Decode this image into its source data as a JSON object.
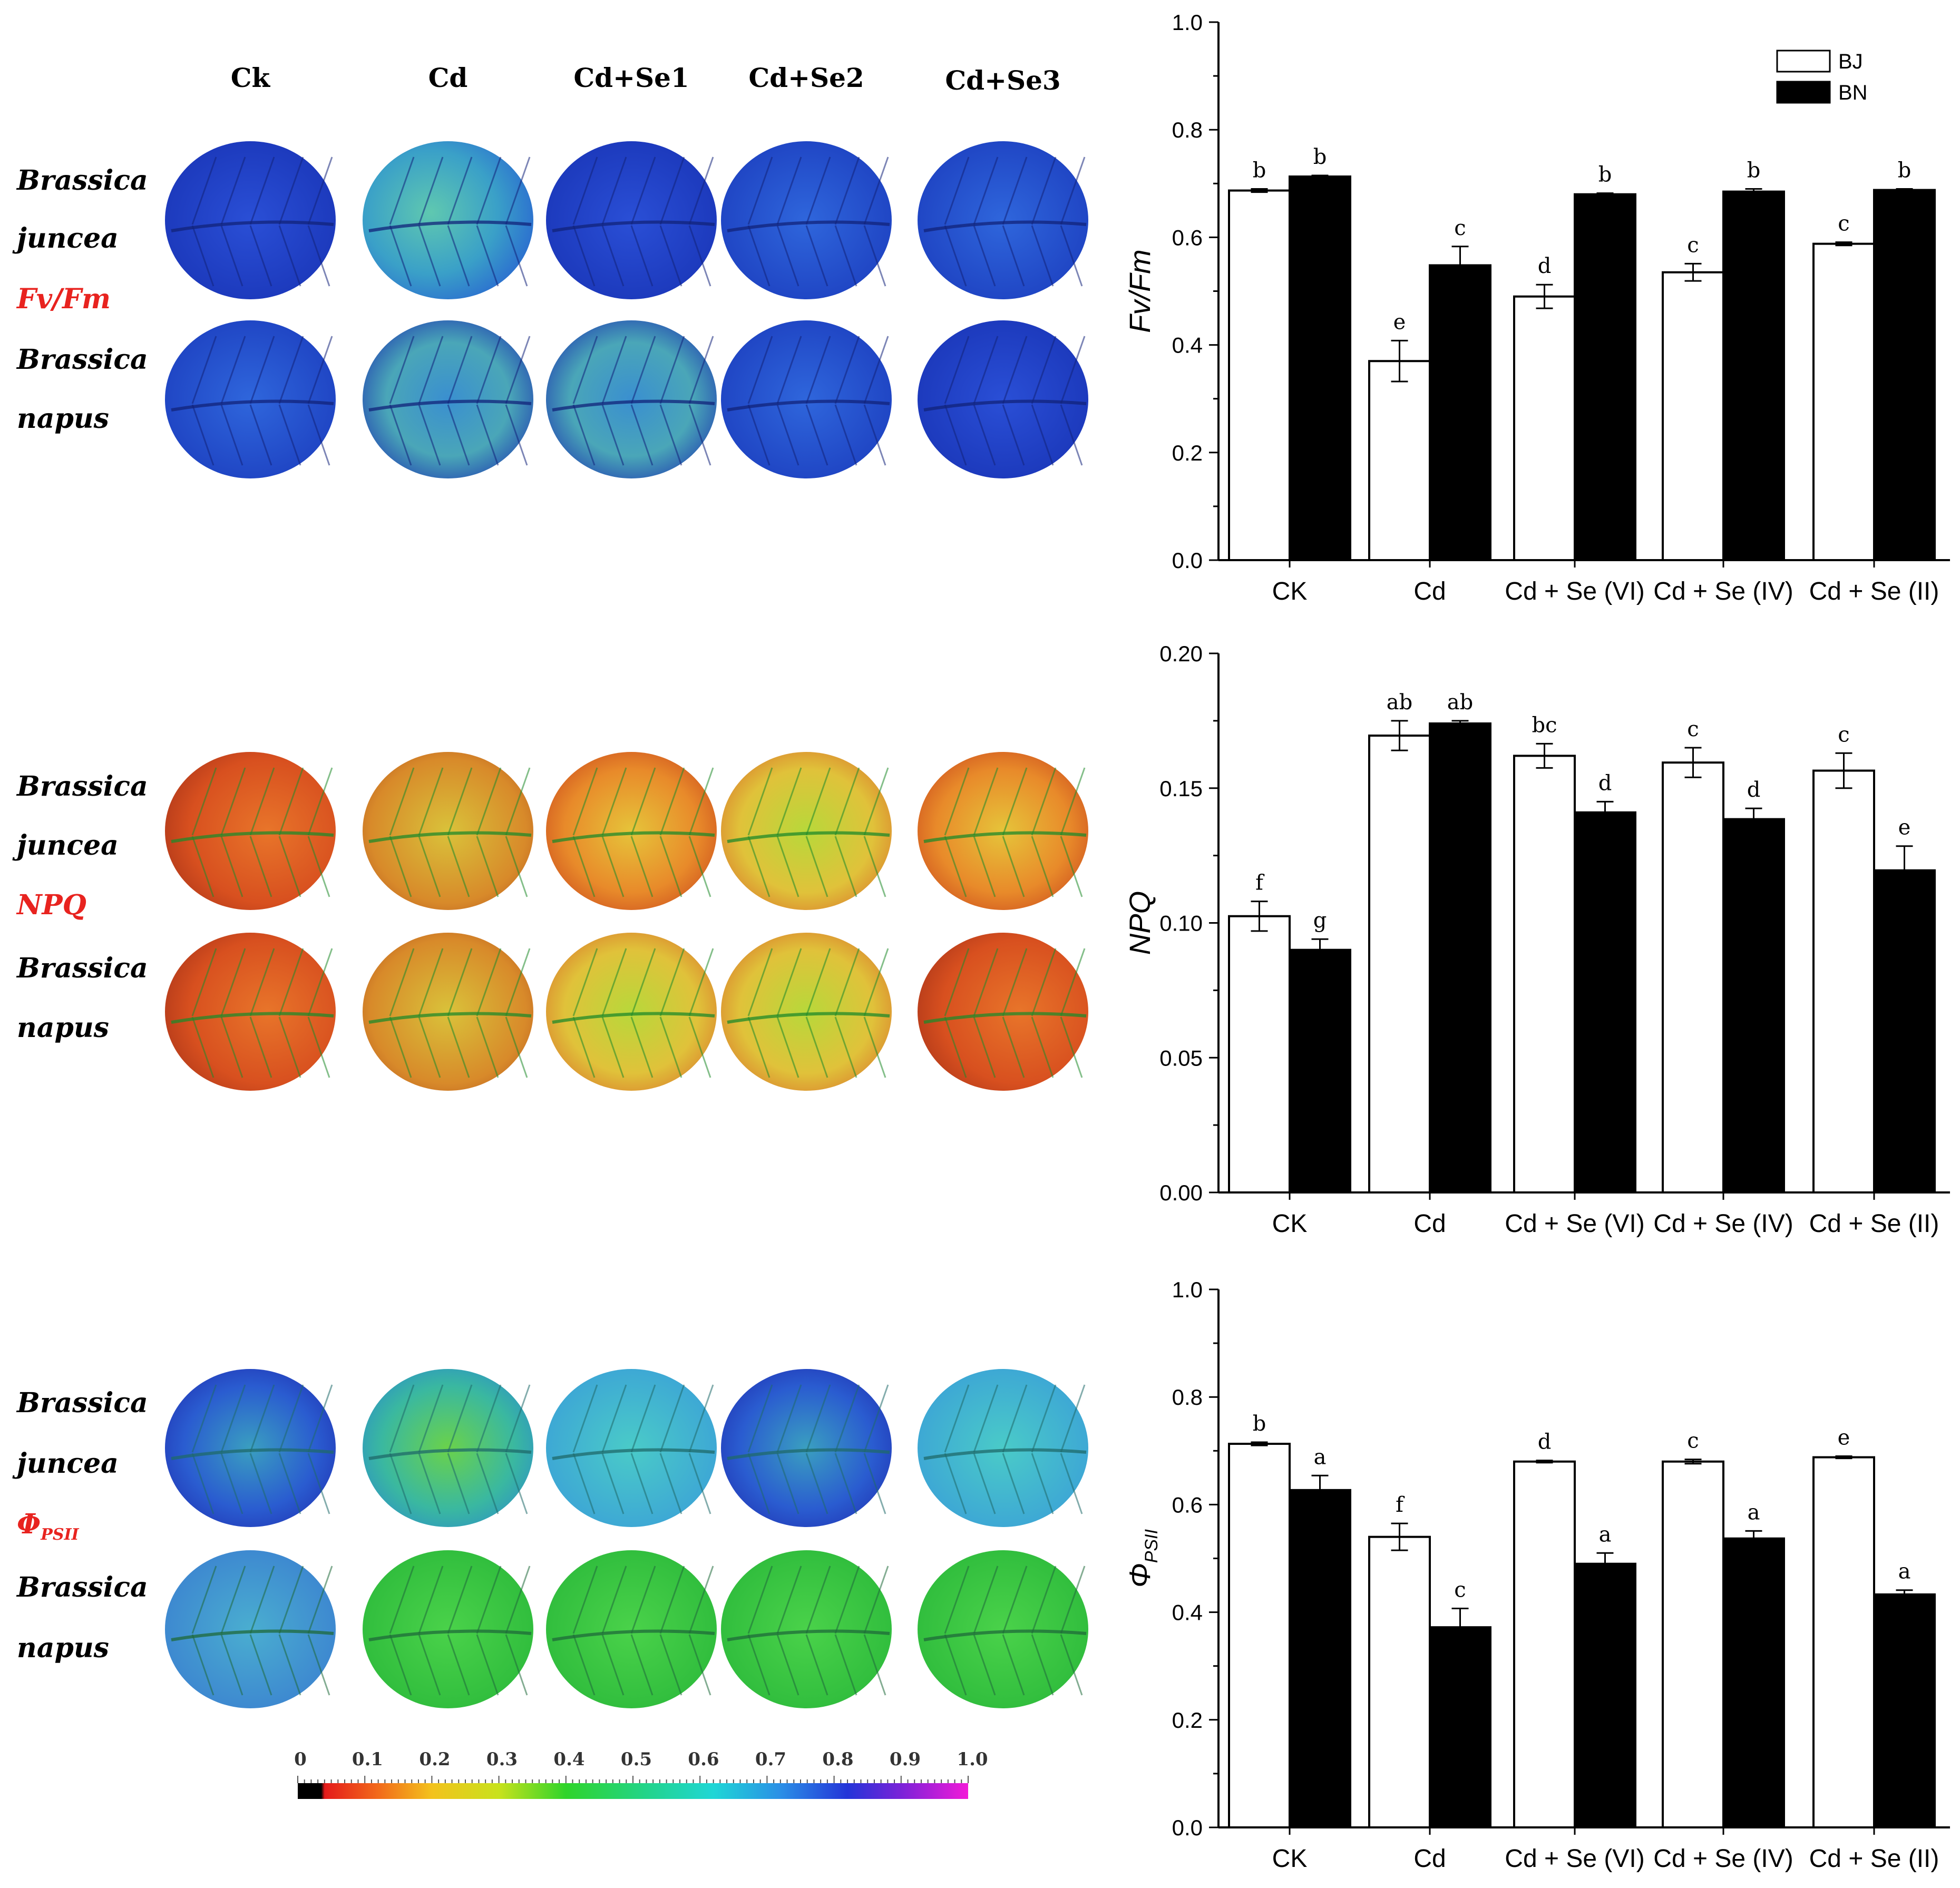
{
  "colors": {
    "accent_label": "#e8231f",
    "bar_bj": "#ffffff",
    "bar_bn": "#000000"
  },
  "leaf_panel": {
    "column_headers": [
      "Ck",
      "Cd",
      "Cd+Se1",
      "Cd+Se2",
      "Cd+Se3"
    ],
    "groups": [
      {
        "species1": [
          "Brassica",
          "juncea"
        ],
        "param": "Fv/Fm",
        "species2": [
          "Brassica",
          "napus"
        ]
      },
      {
        "species1": [
          "Brassica",
          "juncea"
        ],
        "param": "NPQ",
        "species2": [
          "Brassica",
          "napus"
        ]
      },
      {
        "species1": [
          "Brassica",
          "juncea"
        ],
        "param": "Φ",
        "param_sub": "PSII",
        "species2": [
          "Brassica",
          "napus"
        ]
      }
    ],
    "color_scale_labels": [
      "0",
      "0.1",
      "0.2",
      "0.3",
      "0.4",
      "0.5",
      "0.6",
      "0.7",
      "0.8",
      "0.9",
      "1.0"
    ]
  },
  "chart_data": [
    {
      "type": "bar",
      "ylabel": "Fv/Fm",
      "categories": [
        "CK",
        "Cd",
        "Cd + Se (VI)",
        "Cd + Se (IV)",
        "Cd + Se (II)"
      ],
      "ylim": [
        0,
        1.0
      ],
      "yticks": [
        "0.0",
        "0.2",
        "0.4",
        "0.6",
        "0.8",
        "1.0"
      ],
      "legend": [
        "BJ",
        "BN"
      ],
      "series": [
        {
          "name": "BJ",
          "values": [
            0.687,
            0.37,
            0.49,
            0.535,
            0.588
          ],
          "errors": [
            0.003,
            0.038,
            0.022,
            0.016,
            0.003
          ],
          "letters": [
            "b",
            "e",
            "d",
            "c",
            "c"
          ]
        },
        {
          "name": "BN",
          "values": [
            0.713,
            0.548,
            0.68,
            0.685,
            0.688
          ],
          "errors": [
            0.002,
            0.035,
            0.002,
            0.005,
            0.002
          ],
          "letters": [
            "b",
            "c",
            "b",
            "b",
            "b"
          ]
        }
      ]
    },
    {
      "type": "bar",
      "ylabel": "NPQ",
      "categories": [
        "CK",
        "Cd",
        "Cd + Se (VI)",
        "Cd + Se (IV)",
        "Cd + Se (II)"
      ],
      "ylim": [
        0,
        0.2
      ],
      "yticks": [
        "0.00",
        "0.05",
        "0.10",
        "0.15",
        "0.20"
      ],
      "series": [
        {
          "name": "BJ",
          "values": [
            0.1025,
            0.1695,
            0.162,
            0.1595,
            0.1565
          ],
          "errors": [
            0.0055,
            0.0055,
            0.0045,
            0.0055,
            0.0065
          ],
          "letters": [
            "f",
            "ab",
            "bc",
            "c",
            "c"
          ]
        },
        {
          "name": "BN",
          "values": [
            0.09,
            0.174,
            0.141,
            0.1385,
            0.1195
          ],
          "errors": [
            0.004,
            0.001,
            0.004,
            0.004,
            0.009
          ],
          "letters": [
            "g",
            "ab",
            "d",
            "d",
            "e"
          ]
        }
      ]
    },
    {
      "type": "bar",
      "ylabel": "Φ",
      "ylabel_sub": "PSII",
      "categories": [
        "CK",
        "Cd",
        "Cd + Se (VI)",
        "Cd + Se (IV)",
        "Cd + Se (II)"
      ],
      "ylim": [
        0,
        1.0
      ],
      "yticks": [
        "0.0",
        "0.2",
        "0.4",
        "0.6",
        "0.8",
        "1.0"
      ],
      "series": [
        {
          "name": "BJ",
          "values": [
            0.713,
            0.54,
            0.68,
            0.68,
            0.688
          ],
          "errors": [
            0.003,
            0.025,
            0.002,
            0.004,
            0.002
          ],
          "letters": [
            "b",
            "f",
            "d",
            "c",
            "e"
          ]
        },
        {
          "name": "BN",
          "values": [
            0.627,
            0.372,
            0.49,
            0.537,
            0.433
          ],
          "errors": [
            0.027,
            0.035,
            0.02,
            0.014,
            0.008
          ],
          "letters": [
            "a",
            "c",
            "a",
            "a",
            "a"
          ]
        }
      ]
    }
  ]
}
